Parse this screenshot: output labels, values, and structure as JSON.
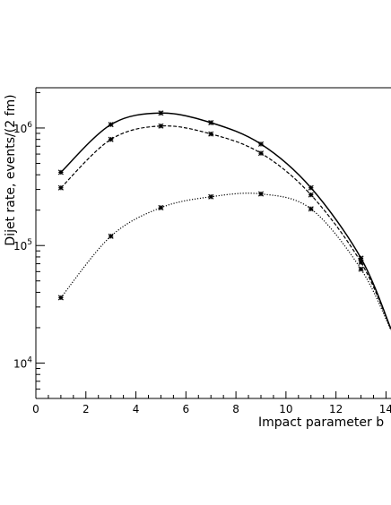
{
  "chart_data": {
    "type": "line",
    "xlabel": "Impact parameter b",
    "ylabel": "Dijet rate, events/(2 fm)",
    "xlim": [
      0,
      14.2
    ],
    "ylim": [
      5000,
      2200000
    ],
    "yscale": "log",
    "grid": false,
    "x_ticks": [
      {
        "value": 0,
        "label": "0"
      },
      {
        "value": 2,
        "label": "2"
      },
      {
        "value": 4,
        "label": "4"
      },
      {
        "value": 6,
        "label": "6"
      },
      {
        "value": 8,
        "label": "8"
      },
      {
        "value": 10,
        "label": "10"
      },
      {
        "value": 12,
        "label": "12"
      },
      {
        "value": 14,
        "label": "14"
      }
    ],
    "y_ticks_major": [
      {
        "value": 10000,
        "base": "10",
        "exp": "4"
      },
      {
        "value": 100000,
        "base": "10",
        "exp": "5"
      },
      {
        "value": 1000000,
        "base": "10",
        "exp": "6"
      }
    ],
    "series": [
      {
        "style": "solid",
        "x": [
          1,
          3,
          5,
          7,
          9,
          11,
          13,
          14.2
        ],
        "y": [
          420000,
          1070000,
          1340000,
          1110000,
          730000,
          310000,
          78000,
          19500
        ]
      },
      {
        "style": "dashed",
        "x": [
          1,
          3,
          5,
          7,
          9,
          11,
          13,
          14.2
        ],
        "y": [
          310000,
          800000,
          1040000,
          890000,
          610000,
          270000,
          72000,
          19500
        ]
      },
      {
        "style": "dotted",
        "x": [
          1,
          3,
          5,
          7,
          9,
          11,
          13,
          14.2
        ],
        "y": [
          36000,
          120000,
          210000,
          260000,
          275000,
          205000,
          63000,
          19000
        ]
      }
    ]
  }
}
